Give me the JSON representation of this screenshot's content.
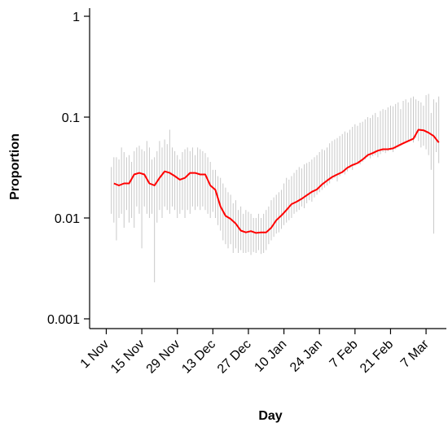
{
  "chart_data": {
    "type": "line",
    "xlabel": "Day",
    "ylabel": "Proportion",
    "y_scale": "log",
    "ylim": [
      0.001,
      1
    ],
    "y_ticks": [
      {
        "value": 0.001,
        "label": "0.001"
      },
      {
        "value": 0.01,
        "label": "0.01"
      },
      {
        "value": 0.1,
        "label": "0.1"
      },
      {
        "value": 1,
        "label": "1"
      }
    ],
    "x_ticks": [
      {
        "date": "2020-11-01",
        "label": "1 Nov"
      },
      {
        "date": "2020-11-15",
        "label": "15 Nov"
      },
      {
        "date": "2020-11-29",
        "label": "29 Nov"
      },
      {
        "date": "2020-12-13",
        "label": "13 Dec"
      },
      {
        "date": "2020-12-27",
        "label": "27 Dec"
      },
      {
        "date": "2021-01-10",
        "label": "10 Jan"
      },
      {
        "date": "2021-01-24",
        "label": "24 Jan"
      },
      {
        "date": "2021-02-07",
        "label": "7 Feb"
      },
      {
        "date": "2021-02-21",
        "label": "21 Feb"
      },
      {
        "date": "2021-03-07",
        "label": "7 Mar"
      }
    ],
    "xlim": [
      "2020-10-28",
      "2021-03-15"
    ],
    "grid": false,
    "legend": "none",
    "series": [
      {
        "color": "#ff0000",
        "x": [
          "2020-11-04",
          "2020-11-06",
          "2020-11-08",
          "2020-11-10",
          "2020-11-12",
          "2020-11-14",
          "2020-11-16",
          "2020-11-18",
          "2020-11-20",
          "2020-11-22",
          "2020-11-24",
          "2020-11-26",
          "2020-11-28",
          "2020-11-30",
          "2020-12-02",
          "2020-12-04",
          "2020-12-06",
          "2020-12-08",
          "2020-12-10",
          "2020-12-12",
          "2020-12-14",
          "2020-12-16",
          "2020-12-18",
          "2020-12-20",
          "2020-12-22",
          "2020-12-24",
          "2020-12-26",
          "2020-12-28",
          "2020-12-30",
          "2021-01-01",
          "2021-01-03",
          "2021-01-05",
          "2021-01-07",
          "2021-01-09",
          "2021-01-11",
          "2021-01-13",
          "2021-01-15",
          "2021-01-17",
          "2021-01-19",
          "2021-01-21",
          "2021-01-23",
          "2021-01-25",
          "2021-01-27",
          "2021-01-29",
          "2021-01-31",
          "2021-02-02",
          "2021-02-04",
          "2021-02-06",
          "2021-02-08",
          "2021-02-10",
          "2021-02-12",
          "2021-02-14",
          "2021-02-16",
          "2021-02-18",
          "2021-02-20",
          "2021-02-22",
          "2021-02-24",
          "2021-02-26",
          "2021-02-28",
          "2021-03-02",
          "2021-03-04",
          "2021-03-06",
          "2021-03-08",
          "2021-03-10",
          "2021-03-12"
        ],
        "values": [
          0.022,
          0.021,
          0.022,
          0.022,
          0.027,
          0.028,
          0.027,
          0.022,
          0.021,
          0.025,
          0.029,
          0.028,
          0.026,
          0.024,
          0.025,
          0.028,
          0.028,
          0.027,
          0.027,
          0.021,
          0.019,
          0.013,
          0.0105,
          0.0098,
          0.0088,
          0.0075,
          0.0072,
          0.0074,
          0.0071,
          0.0072,
          0.0072,
          0.008,
          0.0095,
          0.0106,
          0.012,
          0.0137,
          0.0145,
          0.0155,
          0.0168,
          0.0182,
          0.0192,
          0.0215,
          0.0235,
          0.0255,
          0.027,
          0.0285,
          0.0315,
          0.0335,
          0.035,
          0.038,
          0.042,
          0.044,
          0.0465,
          0.048,
          0.048,
          0.049,
          0.052,
          0.055,
          0.058,
          0.061,
          0.075,
          0.074,
          0.07,
          0.065,
          0.056
        ]
      }
    ],
    "intervals": {
      "color": "#c8c8c8",
      "x": [
        "2020-11-03",
        "2020-11-04",
        "2020-11-05",
        "2020-11-06",
        "2020-11-07",
        "2020-11-08",
        "2020-11-09",
        "2020-11-10",
        "2020-11-11",
        "2020-11-12",
        "2020-11-13",
        "2020-11-14",
        "2020-11-15",
        "2020-11-16",
        "2020-11-17",
        "2020-11-18",
        "2020-11-19",
        "2020-11-20",
        "2020-11-21",
        "2020-11-22",
        "2020-11-23",
        "2020-11-24",
        "2020-11-25",
        "2020-11-26",
        "2020-11-27",
        "2020-11-28",
        "2020-11-29",
        "2020-11-30",
        "2020-12-01",
        "2020-12-02",
        "2020-12-03",
        "2020-12-04",
        "2020-12-05",
        "2020-12-06",
        "2020-12-07",
        "2020-12-08",
        "2020-12-09",
        "2020-12-10",
        "2020-12-11",
        "2020-12-12",
        "2020-12-13",
        "2020-12-14",
        "2020-12-15",
        "2020-12-16",
        "2020-12-17",
        "2020-12-18",
        "2020-12-19",
        "2020-12-20",
        "2020-12-21",
        "2020-12-22",
        "2020-12-23",
        "2020-12-24",
        "2020-12-25",
        "2020-12-26",
        "2020-12-27",
        "2020-12-28",
        "2020-12-29",
        "2020-12-30",
        "2020-12-31",
        "2021-01-01",
        "2021-01-02",
        "2021-01-03",
        "2021-01-04",
        "2021-01-05",
        "2021-01-06",
        "2021-01-07",
        "2021-01-08",
        "2021-01-09",
        "2021-01-10",
        "2021-01-11",
        "2021-01-12",
        "2021-01-13",
        "2021-01-14",
        "2021-01-15",
        "2021-01-16",
        "2021-01-17",
        "2021-01-18",
        "2021-01-19",
        "2021-01-20",
        "2021-01-21",
        "2021-01-22",
        "2021-01-23",
        "2021-01-24",
        "2021-01-25",
        "2021-01-26",
        "2021-01-27",
        "2021-01-28",
        "2021-01-29",
        "2021-01-30",
        "2021-01-31",
        "2021-02-01",
        "2021-02-02",
        "2021-02-03",
        "2021-02-04",
        "2021-02-05",
        "2021-02-06",
        "2021-02-07",
        "2021-02-08",
        "2021-02-09",
        "2021-02-10",
        "2021-02-11",
        "2021-02-12",
        "2021-02-13",
        "2021-02-14",
        "2021-02-15",
        "2021-02-16",
        "2021-02-17",
        "2021-02-18",
        "2021-02-19",
        "2021-02-20",
        "2021-02-21",
        "2021-02-22",
        "2021-02-23",
        "2021-02-24",
        "2021-02-25",
        "2021-02-26",
        "2021-02-27",
        "2021-02-28",
        "2021-03-01",
        "2021-03-02",
        "2021-03-03",
        "2021-03-04",
        "2021-03-05",
        "2021-03-06",
        "2021-03-07",
        "2021-03-08",
        "2021-03-09",
        "2021-03-10",
        "2021-03-11",
        "2021-03-12"
      ],
      "low": [
        0.011,
        0.009,
        0.006,
        0.01,
        0.011,
        0.008,
        0.012,
        0.009,
        0.01,
        0.008,
        0.013,
        0.011,
        0.005,
        0.013,
        0.011,
        0.01,
        0.011,
        0.0023,
        0.009,
        0.012,
        0.01,
        0.013,
        0.012,
        0.011,
        0.013,
        0.012,
        0.01,
        0.011,
        0.012,
        0.01,
        0.012,
        0.011,
        0.013,
        0.012,
        0.013,
        0.012,
        0.013,
        0.012,
        0.011,
        0.01,
        0.0115,
        0.01,
        0.0085,
        0.0075,
        0.006,
        0.0055,
        0.005,
        0.0055,
        0.0045,
        0.005,
        0.0045,
        0.0048,
        0.0045,
        0.0045,
        0.0046,
        0.0043,
        0.0046,
        0.0045,
        0.0048,
        0.0044,
        0.0045,
        0.0048,
        0.0055,
        0.006,
        0.0065,
        0.007,
        0.0072,
        0.0078,
        0.0085,
        0.009,
        0.0095,
        0.01,
        0.011,
        0.0115,
        0.012,
        0.013,
        0.0125,
        0.014,
        0.015,
        0.0145,
        0.016,
        0.017,
        0.018,
        0.019,
        0.02,
        0.021,
        0.022,
        0.024,
        0.025,
        0.023,
        0.026,
        0.028,
        0.027,
        0.029,
        0.031,
        0.03,
        0.033,
        0.035,
        0.034,
        0.036,
        0.038,
        0.04,
        0.039,
        0.041,
        0.042,
        0.04,
        0.043,
        0.045,
        0.044,
        0.046,
        0.047,
        0.045,
        0.048,
        0.05,
        0.052,
        0.055,
        0.057,
        0.058,
        0.06,
        0.056,
        0.062,
        0.058,
        0.05,
        0.052,
        0.048,
        0.042,
        0.03,
        0.007,
        0.045,
        0.035
      ],
      "high": [
        0.032,
        0.04,
        0.04,
        0.038,
        0.05,
        0.045,
        0.04,
        0.042,
        0.036,
        0.046,
        0.05,
        0.052,
        0.048,
        0.046,
        0.058,
        0.05,
        0.038,
        0.04,
        0.046,
        0.058,
        0.05,
        0.06,
        0.054,
        0.075,
        0.05,
        0.046,
        0.042,
        0.038,
        0.045,
        0.048,
        0.05,
        0.046,
        0.05,
        0.042,
        0.05,
        0.048,
        0.046,
        0.044,
        0.04,
        0.036,
        0.03,
        0.03,
        0.026,
        0.025,
        0.022,
        0.02,
        0.018,
        0.017,
        0.014,
        0.015,
        0.012,
        0.013,
        0.011,
        0.012,
        0.0115,
        0.011,
        0.01,
        0.01,
        0.011,
        0.01,
        0.011,
        0.012,
        0.013,
        0.015,
        0.016,
        0.017,
        0.018,
        0.019,
        0.022,
        0.025,
        0.024,
        0.026,
        0.028,
        0.03,
        0.032,
        0.031,
        0.034,
        0.035,
        0.036,
        0.038,
        0.04,
        0.042,
        0.045,
        0.048,
        0.047,
        0.05,
        0.055,
        0.058,
        0.06,
        0.062,
        0.065,
        0.068,
        0.072,
        0.07,
        0.075,
        0.08,
        0.085,
        0.082,
        0.088,
        0.09,
        0.095,
        0.1,
        0.098,
        0.105,
        0.11,
        0.1,
        0.115,
        0.12,
        0.118,
        0.125,
        0.13,
        0.128,
        0.135,
        0.14,
        0.12,
        0.145,
        0.15,
        0.14,
        0.155,
        0.16,
        0.15,
        0.145,
        0.14,
        0.13,
        0.165,
        0.17,
        0.11,
        0.15,
        0.14,
        0.16
      ]
    }
  }
}
